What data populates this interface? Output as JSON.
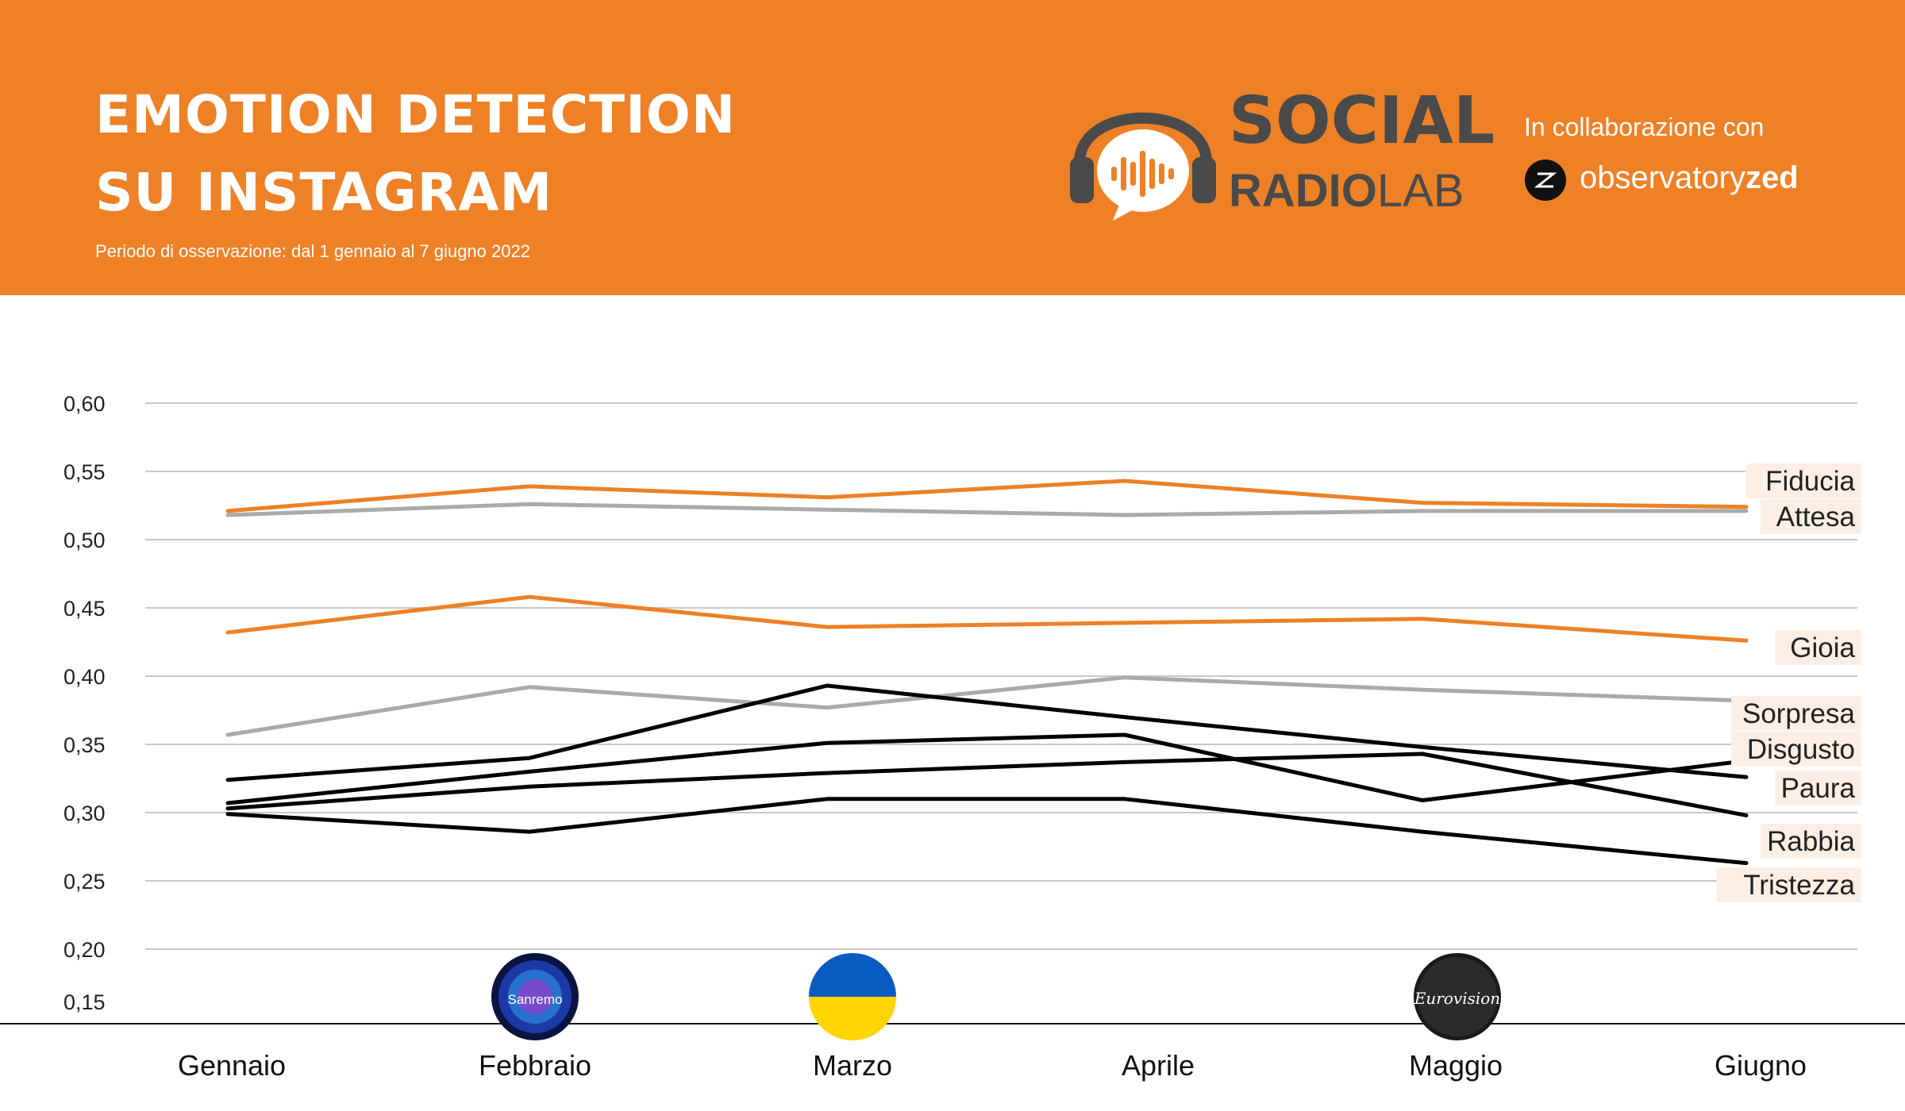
{
  "header": {
    "title_line1": "EMOTION DETECTION",
    "title_line2": "SU INSTAGRAM",
    "subtitle": "Periodo di osservazione: dal 1 gennaio al 7 giugno 2022",
    "brand_top": "SOCIAL",
    "brand_bottom_bold": "RADIO",
    "brand_bottom_light": "LAB",
    "collab_label": "In collaborazione con",
    "partner_light": "observatory",
    "partner_bold": "zed",
    "background_color": "#ee8026"
  },
  "colors": {
    "orange": "#ee8026",
    "gray": "#aaaaaa",
    "black": "#000000",
    "label_bg": "#fbeee4"
  },
  "event_icons": [
    {
      "month": "Febbraio",
      "icon": "sanremo-logo-icon",
      "text": "Sanremo"
    },
    {
      "month": "Marzo",
      "icon": "ukraine-flag-icon",
      "text": ""
    },
    {
      "month": "Maggio",
      "icon": "eurovision-logo-icon",
      "text": "Eurovision"
    }
  ],
  "chart_data": {
    "type": "line",
    "categories": [
      "Gennaio",
      "Febbraio",
      "Marzo",
      "Aprile",
      "Maggio",
      "Giugno"
    ],
    "yticks": [
      "0,15",
      "0,20",
      "0,25",
      "0,30",
      "0,35",
      "0,40",
      "0,45",
      "0,50",
      "0,55",
      "0,60"
    ],
    "ylim": [
      0.15,
      0.6
    ],
    "grid": true,
    "legend": "series labels at right end of lines",
    "series": [
      {
        "name": "Fiducia",
        "color": "#ee8026",
        "values": [
          0.521,
          0.539,
          0.531,
          0.543,
          0.527,
          0.524
        ]
      },
      {
        "name": "Attesa",
        "color": "#aaaaaa",
        "values": [
          0.518,
          0.526,
          0.522,
          0.518,
          0.521,
          0.521
        ]
      },
      {
        "name": "Gioia",
        "color": "#ee8026",
        "values": [
          0.432,
          0.458,
          0.436,
          0.439,
          0.442,
          0.426
        ]
      },
      {
        "name": "Sorpresa",
        "color": "#aaaaaa",
        "values": [
          0.357,
          0.392,
          0.377,
          0.399,
          0.39,
          0.382
        ]
      },
      {
        "name": "Disgusto",
        "color": "#000000",
        "values": [
          0.324,
          0.34,
          0.393,
          0.37,
          0.348,
          0.326
        ]
      },
      {
        "name": "Paura",
        "color": "#000000",
        "values": [
          0.307,
          0.33,
          0.351,
          0.357,
          0.309,
          0.338
        ]
      },
      {
        "name": "Rabbia",
        "color": "#000000",
        "values": [
          0.303,
          0.319,
          0.329,
          0.337,
          0.343,
          0.298
        ]
      },
      {
        "name": "Tristezza",
        "color": "#000000",
        "values": [
          0.299,
          0.286,
          0.31,
          0.31,
          0.286,
          0.263
        ]
      }
    ]
  }
}
